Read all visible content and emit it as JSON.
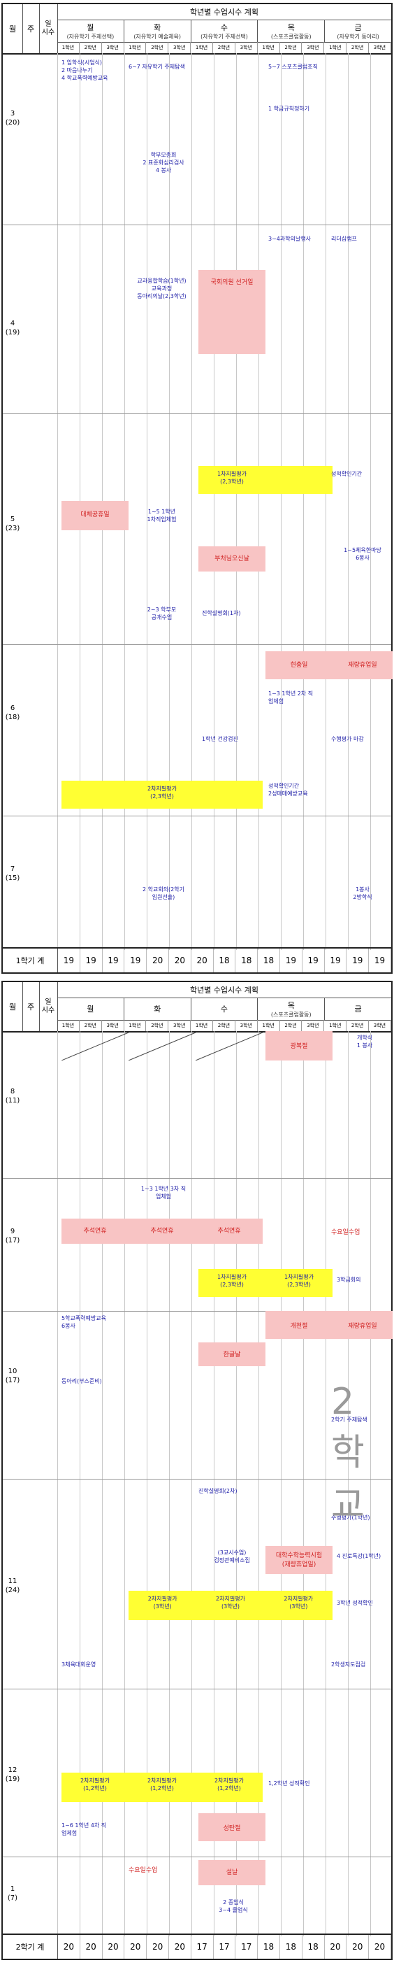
{
  "header": {
    "month_col": "월",
    "week_col": "주",
    "days_col": "일\n시수",
    "title": "학년별 수업시수 계획",
    "days": [
      {
        "day": "월",
        "sub": "(자유학기 주제선택)"
      },
      {
        "day": "화",
        "sub": "(자유학기 예술체육)"
      },
      {
        "day": "수",
        "sub": "(자유학기 주제선택)"
      },
      {
        "day": "목",
        "sub": "(스포츠클럽활동)"
      },
      {
        "day": "금",
        "sub": "(자유학기 동아리)"
      }
    ],
    "grades": [
      "1학년",
      "2학년",
      "3학년",
      "1학년",
      "2학년",
      "3학년",
      "1학년",
      "2학년",
      "3학년",
      "1학년",
      "2학년",
      "3학년",
      "1학년",
      "2학년",
      "3학년"
    ]
  },
  "sheet1": {
    "months": [
      {
        "label": "3\n(20)"
      },
      {
        "label": "4\n(19)"
      },
      {
        "label": "5\n(23)"
      },
      {
        "label": "6\n(18)"
      },
      {
        "label": "7\n(15)"
      }
    ],
    "events": [
      "1 입학식(시업식)\n2 마음나누기\n4 학교폭력예방교육",
      "6~7 자유학기 주제탐색",
      "5~7 스포츠클럽조직",
      "1 학급규칙정하기",
      "학부모총회\n2 표준화심리검사\n4 봉사",
      "3~4과학의날행사",
      "리더십캠프",
      "교과융합학습(1학년)\n교육과정\n동아리의날(2,3학년)",
      "국회의원 선거일",
      "1차지필평가\n(2,3학년)",
      "성적확인기간",
      "대체공휴일",
      "1~5 1학년\n1차직업체험",
      "부처님오신날",
      "1~5체육한마당\n6봉사",
      "2~3 학부모\n공개수업",
      "진학설명회(1차)",
      "현충일",
      "재량휴업일",
      "1~3 1학년 2차 직\n업체험",
      "1학년 건강검진",
      "수행평가 마감",
      "2차지필평가\n(2,3학년)",
      "성적확인기간\n2성매매예방교육",
      "2 학교회의(2학기\n임원선출)",
      "1봉사\n2방학식"
    ],
    "total_label": "1학기 계",
    "totals": [
      "19",
      "19",
      "19",
      "19",
      "20",
      "20",
      "20",
      "18",
      "18",
      "18",
      "19",
      "19",
      "19",
      "19",
      "19"
    ]
  },
  "sheet2": {
    "months": [
      {
        "label": "8\n(11)"
      },
      {
        "label": "9\n(17)"
      },
      {
        "label": "10\n(17)"
      },
      {
        "label": "11\n(24)"
      },
      {
        "label": "12\n(19)"
      },
      {
        "label": "1\n(7)"
      }
    ],
    "events": [
      "광복절",
      "개학식\n1 봉사",
      "1~3 1학년 3차 직\n업체험",
      "추석연휴",
      "수요일수업",
      "1차지필평가\n(2,3학년)",
      "3학급회의",
      "5학교폭력예방교육\n6봉사",
      "개천절",
      "재량휴업일",
      "한글날",
      "동아리(부스준비)",
      "2학기 주제탐색",
      "진학설명회(2차)",
      "수행평가(1학년)",
      "(3교시수업)\n검정관예비소집",
      "대학수학능력시험\n(재량휴업일)",
      "4 진로특강(1학년)",
      "2차지필평가\n(3학년)",
      "3학년 성적확인",
      "3체육대회운영",
      "2학생지도점검",
      "2차지필평가\n(1,2학년)",
      "1,2학년 성적확인",
      "1~6 1학년 4차 직\n업체험",
      "성탄절",
      "수요일수업",
      "설날",
      "2 종업식\n3~4 졸업식"
    ],
    "total_label": "2학기 계",
    "totals": [
      "20",
      "20",
      "20",
      "20",
      "20",
      "20",
      "17",
      "17",
      "17",
      "18",
      "18",
      "18",
      "20",
      "20",
      "20"
    ]
  },
  "watermark": "2 학교"
}
